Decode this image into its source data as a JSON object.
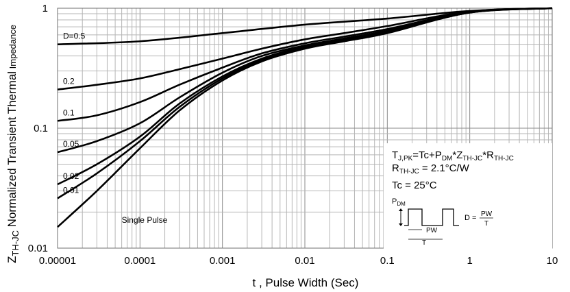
{
  "chart_data": {
    "type": "line",
    "scale": "log-log",
    "xlabel": "t , Pulse Width (Sec)",
    "ylabel": {
      "prefix": "Z",
      "prefix_sub": "TH-JC",
      "main": " Normalized Transient Thermal",
      "tail": " Impedance"
    },
    "xlim": [
      1e-05,
      10
    ],
    "ylim": [
      0.01,
      1
    ],
    "grid": true,
    "x_tick_labels": [
      "0.00001",
      "0.0001",
      "0.001",
      "0.01",
      "0.1",
      "1",
      "10"
    ],
    "y_tick_labels": [
      "0.01",
      "0.1",
      "1"
    ],
    "series": [
      {
        "name": "D=0.5",
        "label": "D=0.5",
        "x": [
          1e-05,
          0.0001,
          0.001,
          0.01,
          0.1,
          1,
          10
        ],
        "y": [
          0.5,
          0.53,
          0.62,
          0.73,
          0.82,
          0.95,
          1.0
        ]
      },
      {
        "name": "0.2",
        "label": "0.2",
        "x": [
          1e-05,
          3e-05,
          0.0001,
          0.0003,
          0.001,
          0.003,
          0.01,
          0.03,
          0.1,
          1,
          10
        ],
        "y": [
          0.21,
          0.23,
          0.26,
          0.31,
          0.38,
          0.46,
          0.55,
          0.62,
          0.71,
          0.94,
          1.0
        ]
      },
      {
        "name": "0.1",
        "label": "0.1",
        "x": [
          1e-05,
          3e-05,
          0.0001,
          0.0003,
          0.001,
          0.003,
          0.01,
          0.03,
          0.1,
          1,
          10
        ],
        "y": [
          0.115,
          0.128,
          0.165,
          0.23,
          0.32,
          0.42,
          0.51,
          0.58,
          0.67,
          0.93,
          1.0
        ]
      },
      {
        "name": "0.05",
        "label": "0.05",
        "x": [
          1e-05,
          3e-05,
          0.0001,
          0.0003,
          0.001,
          0.003,
          0.01,
          0.03,
          0.1,
          1,
          10
        ],
        "y": [
          0.063,
          0.078,
          0.11,
          0.18,
          0.29,
          0.4,
          0.49,
          0.56,
          0.65,
          0.93,
          1.0
        ]
      },
      {
        "name": "0.02",
        "label": "0.02",
        "x": [
          1e-05,
          3e-05,
          0.0001,
          0.0003,
          0.001,
          0.003,
          0.01,
          0.03,
          0.1,
          1,
          10
        ],
        "y": [
          0.034,
          0.05,
          0.085,
          0.16,
          0.27,
          0.38,
          0.48,
          0.55,
          0.64,
          0.92,
          1.0
        ]
      },
      {
        "name": "0.01",
        "label": "0.01",
        "x": [
          1e-05,
          3e-05,
          0.0001,
          0.0003,
          0.001,
          0.003,
          0.01,
          0.03,
          0.1,
          1,
          10
        ],
        "y": [
          0.026,
          0.042,
          0.078,
          0.15,
          0.26,
          0.37,
          0.47,
          0.54,
          0.63,
          0.92,
          1.0
        ]
      },
      {
        "name": "Single Pulse",
        "label": "Single Pulse",
        "x": [
          1e-05,
          3e-05,
          0.0001,
          0.0003,
          0.001,
          0.003,
          0.01,
          0.03,
          0.1,
          1,
          10
        ],
        "y": [
          0.015,
          0.03,
          0.068,
          0.14,
          0.25,
          0.36,
          0.46,
          0.53,
          0.62,
          0.92,
          1.0
        ]
      }
    ],
    "annotations": {
      "formula1": {
        "t": "T",
        "t_sub": "J,PK",
        "a": "=Tc+P",
        "a_sub": "DM",
        "b": "*Z",
        "b_sub": "TH-JC",
        "c": "*R",
        "c_sub": "TH-JC"
      },
      "formula2": {
        "r": "R",
        "r_sub": "TH-JC",
        "value": " = 2.1°C/W"
      },
      "formula3": "Tc = 25°C",
      "pulse_diagram": {
        "p_label": "P",
        "p_sub": "DM",
        "pw_label": "PW",
        "t_label": "T",
        "d_label": "D =",
        "fraction_num": "PW",
        "fraction_den": "T"
      }
    }
  }
}
